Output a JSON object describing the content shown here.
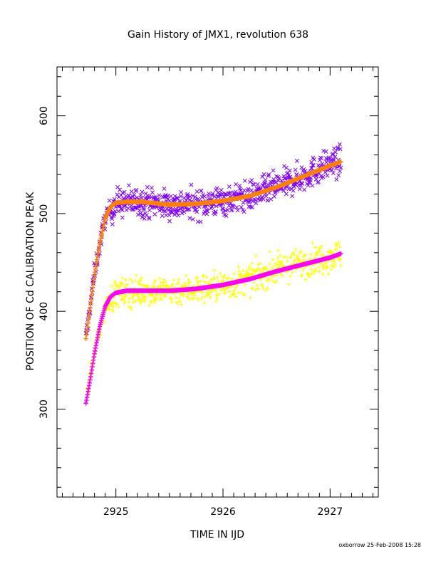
{
  "chart_data": {
    "type": "scatter",
    "title": "Gain History of JMX1, revolution 638",
    "xlabel": "TIME IN IJD",
    "ylabel": "POSITION OF Cd CALIBRATION PEAK",
    "footer": "oxborrow 25-Feb-2008 15:28",
    "xlim": [
      2924.45,
      2927.45
    ],
    "ylim": [
      210,
      650
    ],
    "x_ticks": [
      2925,
      2926,
      2927
    ],
    "x_tick_labels": [
      "2925",
      "2926",
      "2927"
    ],
    "y_ticks": [
      300,
      400,
      500,
      600
    ],
    "y_tick_labels": [
      "300",
      "400",
      "500",
      "600"
    ],
    "grid": false,
    "x_range_of_data": [
      2924.72,
      2927.1
    ],
    "series": [
      {
        "marker": "x",
        "color": "#7f00ff",
        "kind": "scatter",
        "approx_trend": [
          [
            2924.72,
            372
          ],
          [
            2924.8,
            440
          ],
          [
            2924.9,
            496
          ],
          [
            2925.0,
            511
          ],
          [
            2925.25,
            512
          ],
          [
            2925.5,
            509
          ],
          [
            2925.75,
            510
          ],
          [
            2926.0,
            513
          ],
          [
            2926.25,
            518
          ],
          [
            2926.5,
            527
          ],
          [
            2926.75,
            538
          ],
          [
            2927.0,
            551
          ],
          [
            2927.1,
            553
          ]
        ]
      },
      {
        "marker": "+",
        "color": "#ffff00",
        "kind": "scatter",
        "approx_trend": [
          [
            2924.72,
            310
          ],
          [
            2924.8,
            358
          ],
          [
            2924.9,
            405
          ],
          [
            2925.0,
            418
          ],
          [
            2925.25,
            421
          ],
          [
            2925.5,
            421
          ],
          [
            2925.75,
            423
          ],
          [
            2926.0,
            426
          ],
          [
            2926.25,
            433
          ],
          [
            2926.5,
            443
          ],
          [
            2926.75,
            450
          ],
          [
            2927.0,
            456
          ],
          [
            2927.1,
            459
          ]
        ]
      },
      {
        "marker": "+",
        "color": "#ff8000",
        "kind": "fit",
        "points": [
          [
            2924.72,
            372
          ],
          [
            2924.76,
            404
          ],
          [
            2924.8,
            437
          ],
          [
            2924.85,
            470
          ],
          [
            2924.9,
            495
          ],
          [
            2924.95,
            507
          ],
          [
            2925.0,
            511
          ],
          [
            2925.1,
            512
          ],
          [
            2925.25,
            512
          ],
          [
            2925.5,
            509
          ],
          [
            2925.75,
            510
          ],
          [
            2926.0,
            513
          ],
          [
            2926.25,
            518
          ],
          [
            2926.5,
            527
          ],
          [
            2926.75,
            538
          ],
          [
            2927.0,
            549
          ],
          [
            2927.1,
            553
          ]
        ]
      },
      {
        "marker": "+",
        "color": "#ff00ff",
        "kind": "fit",
        "points": [
          [
            2924.72,
            306
          ],
          [
            2924.76,
            330
          ],
          [
            2924.8,
            357
          ],
          [
            2924.85,
            385
          ],
          [
            2924.9,
            405
          ],
          [
            2924.95,
            415
          ],
          [
            2925.0,
            419
          ],
          [
            2925.1,
            421
          ],
          [
            2925.25,
            421
          ],
          [
            2925.5,
            421
          ],
          [
            2925.75,
            423
          ],
          [
            2926.0,
            427
          ],
          [
            2926.25,
            433
          ],
          [
            2926.5,
            441
          ],
          [
            2926.75,
            448
          ],
          [
            2927.0,
            455
          ],
          [
            2927.1,
            459
          ]
        ]
      }
    ]
  }
}
